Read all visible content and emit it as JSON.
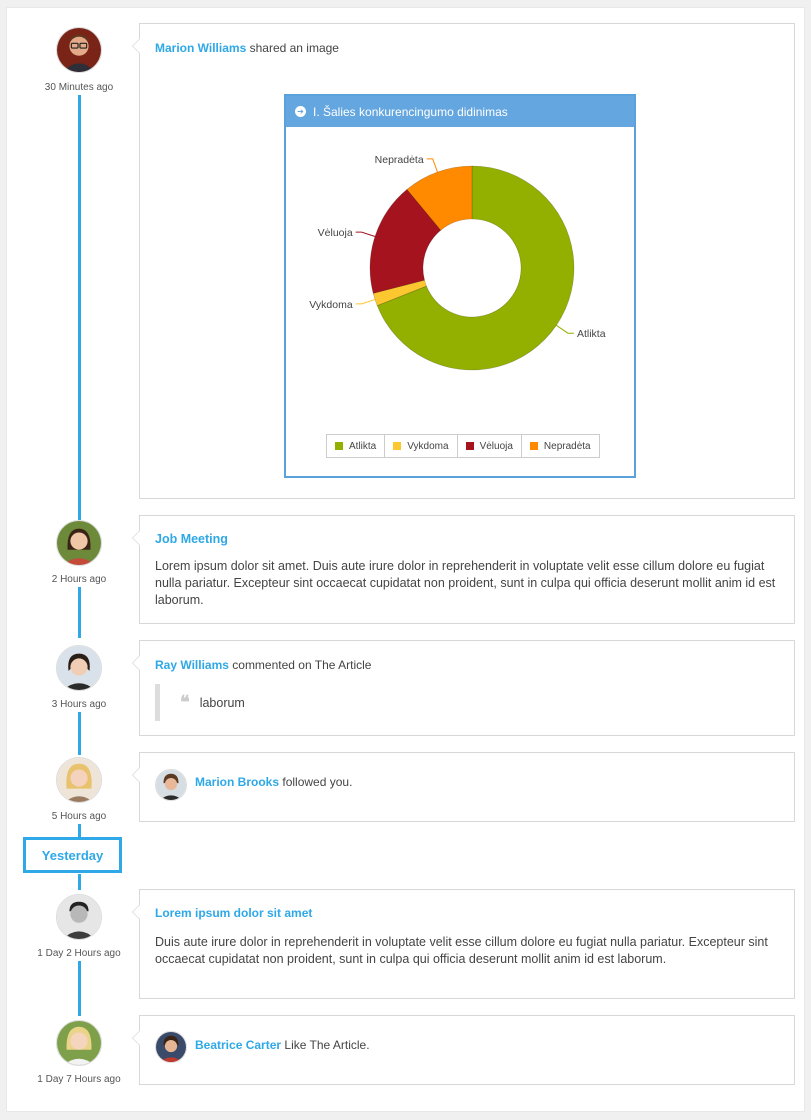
{
  "timeline": {
    "day_separator": "Yesterday",
    "entries": [
      {
        "time": "30 Minutes ago",
        "actor": "Marion Williams",
        "action": "shared an image",
        "image": {
          "header_title": "I. Šalies konkurencingumo didinimas",
          "chart_data": {
            "type": "pie",
            "donut": true,
            "categories": [
              "Atlikta",
              "Vykdoma",
              "Vėluoja",
              "Nepradėta"
            ],
            "values": [
              69,
              2,
              18,
              11
            ],
            "colors": [
              "#93b000",
              "#fdc72f",
              "#a5141e",
              "#ff8a00"
            ],
            "legend": "bottom-center"
          }
        }
      },
      {
        "time": "2 Hours ago",
        "title": "Job Meeting",
        "body": "Lorem ipsum dolor sit amet. Duis aute irure dolor in reprehenderit in voluptate velit esse cillum dolore eu fugiat nulla pariatur. Excepteur sint occaecat cupidatat non proident, sunt in culpa qui officia deserunt mollit anim id est laborum."
      },
      {
        "time": "3 Hours ago",
        "actor": "Ray Williams",
        "action": "commented on The Article",
        "quote": "laborum"
      },
      {
        "time": "5 Hours ago",
        "actor": "Marion Brooks",
        "action": "followed you."
      },
      {
        "time": "1 Day 2 Hours ago",
        "title": "Lorem ipsum dolor sit amet",
        "body": "Duis aute irure dolor in reprehenderit in voluptate velit esse cillum dolore eu fugiat nulla pariatur. Excepteur sint occaecat cupidatat non proident, sunt in culpa qui officia deserunt mollit anim id est laborum."
      },
      {
        "time": "1 Day 7 Hours ago",
        "actor": "Beatrice Carter",
        "action": "Like The Article."
      }
    ]
  },
  "colors": {
    "accent": "#2ea8e6",
    "chart_header": "#64a6df"
  }
}
